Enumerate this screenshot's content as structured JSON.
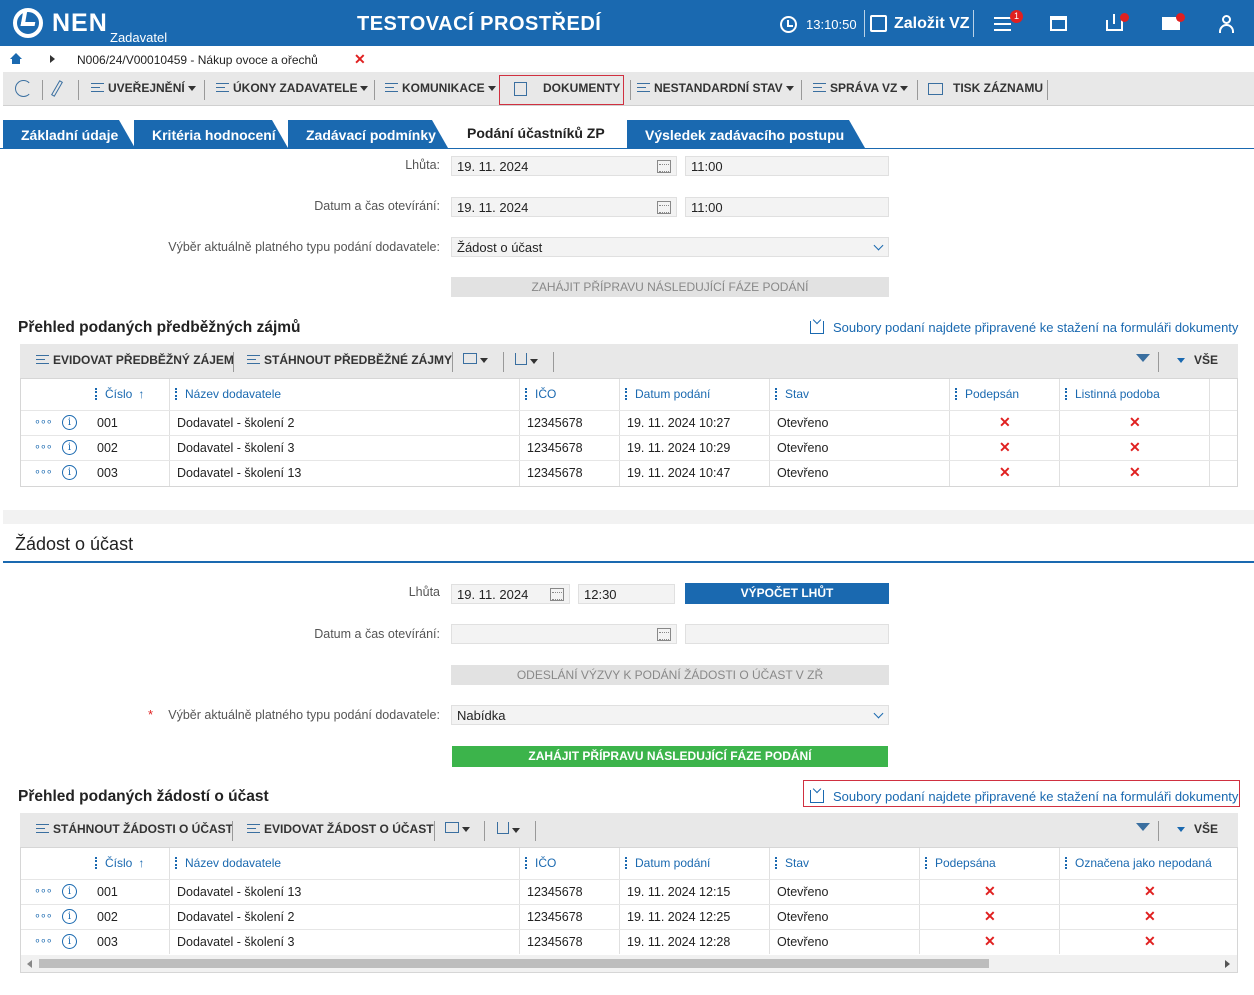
{
  "header": {
    "logo": "NEN",
    "logo_sub": "Zadavatel",
    "env_title": "TESTOVACÍ PROSTŘEDÍ",
    "clock": "13:10:50",
    "new_vz": "Založit VZ",
    "menu_badge": "1"
  },
  "breadcrumb": {
    "text": "N006/24/V00010459 - Nákup ovoce a ořechů"
  },
  "toolbar": {
    "items": [
      "UVEŘEJNĚNÍ",
      "ÚKONY ZADAVATELE",
      "KOMUNIKACE",
      "DOKUMENTY",
      "NESTANDARDNÍ STAV",
      "SPRÁVA VZ",
      "TISK ZÁZNAMU"
    ]
  },
  "tabs": [
    "Základní údaje",
    "Kritéria hodnocení",
    "Zadávací podmínky",
    "Podání účastníků ZP",
    "Výsledek zadávacího postupu"
  ],
  "phase1": {
    "lhuta_label": "Lhůta:",
    "lhuta_date": "19. 11. 2024",
    "lhuta_time": "11:00",
    "open_label": "Datum a čas otevírání:",
    "open_date": "19. 11. 2024",
    "open_time": "11:00",
    "type_label": "Výběr aktuálně platného typu podání dodavatele:",
    "type_value": "Žádost o účast",
    "next_phase_btn": "ZAHÁJIT PŘÍPRAVU NÁSLEDUJÍCÍ FÁZE PODÁNÍ"
  },
  "grid1": {
    "title": "Přehled podaných předběžných zájmů",
    "link": "Soubory podaní najdete připravené ke stažení na formuláři dokumenty",
    "tool1": "EVIDOVAT PŘEDBĚŽNÝ ZÁJEM",
    "tool2": "STÁHNOUT PŘEDBĚŽNÉ ZÁJMY",
    "all": "VŠE",
    "columns": [
      "Číslo",
      "Název dodavatele",
      "IČO",
      "Datum podání",
      "Stav",
      "Podepsán",
      "Listinná podoba"
    ],
    "rows": [
      {
        "cislo": "001",
        "nazev": "Dodavatel - školení 2",
        "ico": "12345678",
        "datum": "19. 11. 2024 10:27",
        "stav": "Otevřeno"
      },
      {
        "cislo": "002",
        "nazev": "Dodavatel - školení 3",
        "ico": "12345678",
        "datum": "19. 11. 2024 10:29",
        "stav": "Otevřeno"
      },
      {
        "cislo": "003",
        "nazev": "Dodavatel - školení 13",
        "ico": "12345678",
        "datum": "19. 11. 2024 10:47",
        "stav": "Otevřeno"
      }
    ]
  },
  "phase2": {
    "title": "Žádost o účast",
    "lhuta_label": "Lhůta",
    "lhuta_date": "19. 11. 2024",
    "lhuta_time": "12:30",
    "calc_btn": "VÝPOČET LHŮT",
    "open_label": "Datum a čas otevírání:",
    "send_btn": "ODESLÁNÍ VÝZVY K PODÁNÍ ŽÁDOSTI O ÚČAST V ZŘ",
    "type_label": "Výběr aktuálně platného typu podání dodavatele:",
    "type_value": "Nabídka",
    "next_phase_btn": "ZAHÁJIT PŘÍPRAVU NÁSLEDUJÍCÍ FÁZE PODÁNÍ"
  },
  "grid2": {
    "title": "Přehled podaných žádostí o účast",
    "link": "Soubory podaní najdete připravené ke stažení na formuláři dokumenty",
    "tool1": "STÁHNOUT ŽÁDOSTI O ÚČAST",
    "tool2": "EVIDOVAT ŽÁDOST O ÚČAST",
    "all": "VŠE",
    "columns": [
      "Číslo",
      "Název dodavatele",
      "IČO",
      "Datum podání",
      "Stav",
      "Podepsána",
      "Označena jako nepodaná"
    ],
    "rows": [
      {
        "cislo": "001",
        "nazev": "Dodavatel - školení 13",
        "ico": "12345678",
        "datum": "19. 11. 2024 12:15",
        "stav": "Otevřeno"
      },
      {
        "cislo": "002",
        "nazev": "Dodavatel - školení 2",
        "ico": "12345678",
        "datum": "19. 11. 2024 12:25",
        "stav": "Otevřeno"
      },
      {
        "cislo": "003",
        "nazev": "Dodavatel - školení 3",
        "ico": "12345678",
        "datum": "19. 11. 2024 12:28",
        "stav": "Otevřeno"
      }
    ]
  },
  "colors": {
    "brand": "#1a69b0",
    "green": "#3cb44b",
    "red": "#e02020"
  }
}
